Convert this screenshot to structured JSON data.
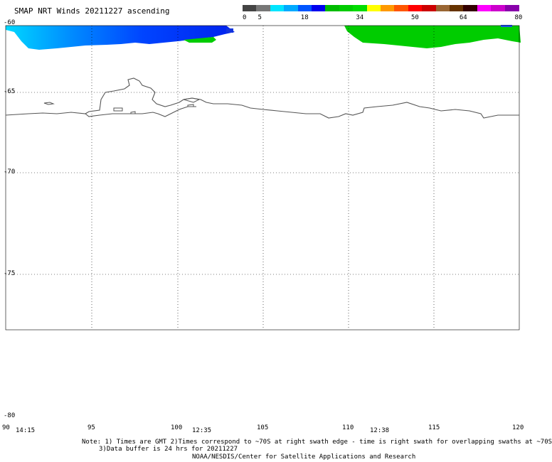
{
  "title": "SMAP NRT Winds 20211227 ascending",
  "colorbar": {
    "labels": [
      {
        "text": "0",
        "value": 0
      },
      {
        "text": "5",
        "value": 5
      },
      {
        "text": "18",
        "value": 18
      },
      {
        "text": "34",
        "value": 34
      },
      {
        "text": "50",
        "value": 50
      },
      {
        "text": "64",
        "value": 64
      },
      {
        "text": "80",
        "value": 80
      }
    ],
    "colors": [
      "#444444",
      "#777777",
      "#00e5ff",
      "#00aaff",
      "#0055ff",
      "#0000ee",
      "#00bb00",
      "#00cc00",
      "#00dd00",
      "#ffff00",
      "#ff9900",
      "#ff5500",
      "#ff0000",
      "#cc0000",
      "#996633",
      "#663300",
      "#330000",
      "#ff00ff",
      "#cc00cc",
      "#8800aa"
    ]
  },
  "axes": {
    "lat_labels": [
      "-60",
      "-65",
      "-70",
      "-75",
      "-80"
    ],
    "lon_labels": [
      "90",
      "95",
      "100",
      "105",
      "110",
      "115",
      "120"
    ]
  },
  "time_labels": [
    "14:15",
    "12:35",
    "12:38"
  ],
  "notes": {
    "line1": "Note: 1) Times are GMT 2)Times correspond to ~70S at right swath edge - time is right swath for overlapping swaths at ~70S",
    "line2": "3)Data buffer is 24 hrs for 20211227",
    "line3": "NOAA/NESDIS/Center for Satellite Applications and Research"
  },
  "swaths": [
    {
      "name": "left swath",
      "wind_range": "5-18",
      "color": "#0044ff"
    },
    {
      "name": "right swath",
      "wind_range": "18-34",
      "color": "#00cc00"
    }
  ]
}
